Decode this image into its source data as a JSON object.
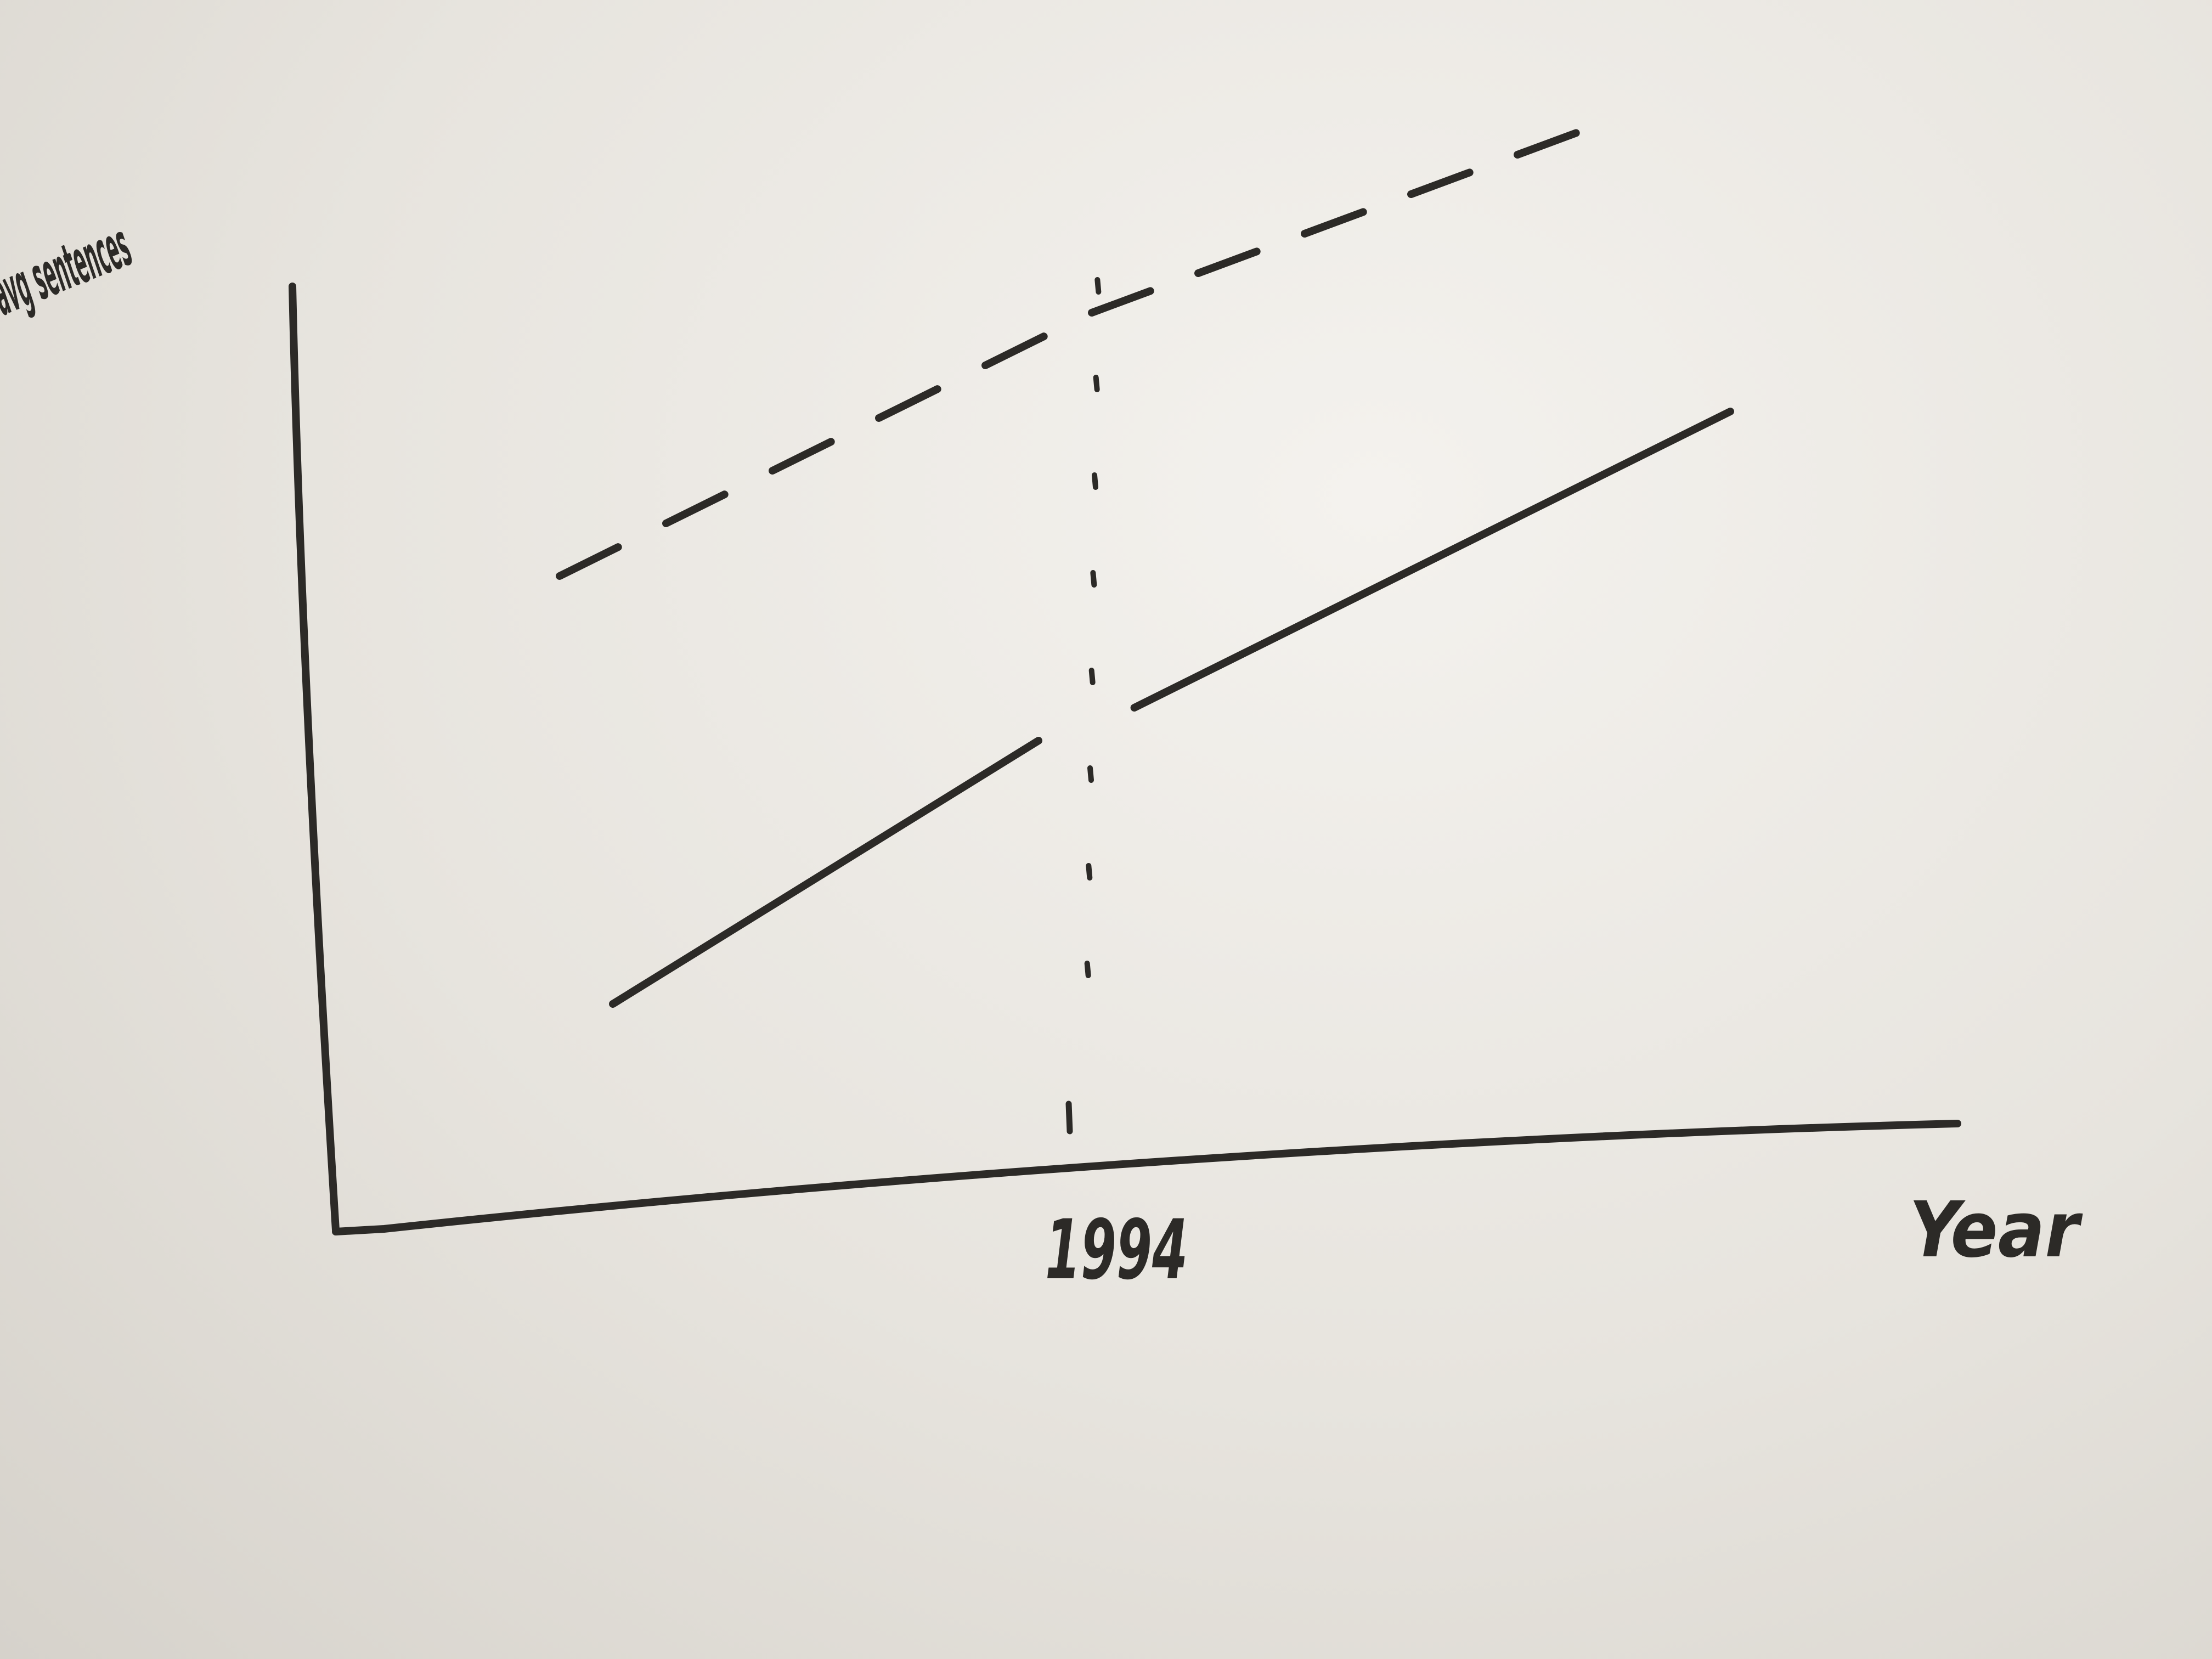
{
  "chart_data": {
    "type": "line",
    "title": "",
    "xlabel": "Year",
    "ylabel": "avg sentences",
    "x_ticks": [
      "1994"
    ],
    "grid": false,
    "legend": "none",
    "ink_color": "#2c2a27",
    "series": [
      {
        "style": "dashed",
        "segments": [
          {
            "x": [
              -10,
              0
            ],
            "y": [
              4.9,
              7.3
            ]
          },
          {
            "x": [
              0,
              10
            ],
            "y": [
              7.3,
              9.1
            ]
          }
        ]
      },
      {
        "style": "solid",
        "segments": [
          {
            "x": [
              -9,
              -1
            ],
            "y": [
              1.0,
              3.4
            ]
          },
          {
            "x": [
              0.8,
              12
            ],
            "y": [
              3.7,
              6.4
            ]
          }
        ]
      }
    ],
    "annotations": [
      {
        "type": "vertical-line",
        "style": "dotted",
        "x": 0,
        "label": "1994"
      }
    ],
    "x_units": "years relative to 1994 (axis unlabeled except 1994)",
    "y_units": "unlabeled"
  }
}
